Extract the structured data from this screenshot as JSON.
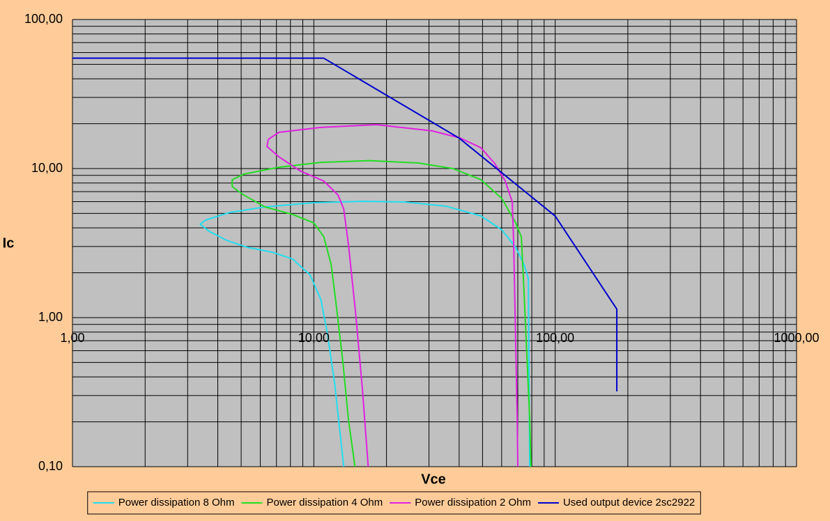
{
  "chart_data": {
    "type": "line",
    "x_label": "Vce",
    "y_label": "Ic",
    "log_x": true,
    "log_y": true,
    "grid": true,
    "minor_grid": true,
    "legend": "bottom",
    "xlim": [
      1,
      1000
    ],
    "ylim": [
      0.1,
      100
    ],
    "xticks": [
      {
        "value": 1,
        "label": "1,00"
      },
      {
        "value": 10,
        "label": "10,00"
      },
      {
        "value": 100,
        "label": "100,00"
      },
      {
        "value": 1000,
        "label": "1000,00"
      }
    ],
    "yticks": [
      {
        "value": 0.1,
        "label": "0,10"
      },
      {
        "value": 1,
        "label": "1,00"
      },
      {
        "value": 10,
        "label": "10,00"
      },
      {
        "value": 100,
        "label": "100,00"
      }
    ],
    "series": [
      {
        "name": "Power dissipation 8 Ohm",
        "color": "#22ddee",
        "x": [
          78.4,
          77.4,
          74.3,
          68.6,
          60.1,
          49.2,
          35.3,
          23.7,
          15.9,
          10.0,
          6.27,
          4.49,
          3.56,
          3.38,
          3.68,
          4.35,
          5.31,
          6.7,
          8.18,
          9.65,
          10.7,
          11.4,
          12.2,
          13.3
        ],
        "values": [
          0.1,
          1.83,
          2.27,
          2.96,
          3.88,
          4.81,
          5.59,
          5.97,
          6.03,
          5.9,
          5.53,
          5.08,
          4.51,
          4.23,
          3.8,
          3.3,
          2.96,
          2.75,
          2.47,
          1.93,
          1.32,
          0.77,
          0.36,
          0.1
        ]
      },
      {
        "name": "Power dissipation 4 Ohm",
        "color": "#22dd22",
        "x": [
          79.4,
          78.4,
          74.3,
          72.4,
          68.6,
          60.1,
          49.2,
          37.7,
          27.1,
          17.0,
          10.7,
          7.16,
          5.13,
          4.59,
          4.59,
          5.13,
          6.27,
          8.18,
          10.0,
          11.0,
          11.8,
          12.4,
          13.2,
          13.9,
          14.8
        ],
        "values": [
          0.1,
          0.21,
          1.47,
          3.48,
          4.32,
          6.3,
          8.42,
          10.0,
          10.9,
          11.3,
          11.0,
          10.2,
          9.18,
          8.42,
          7.56,
          6.64,
          5.53,
          4.92,
          4.32,
          3.48,
          2.27,
          1.19,
          0.5,
          0.21,
          0.1
        ]
      },
      {
        "name": "Power dissipation 2 Ohm",
        "color": "#e020e0",
        "x": [
          70.0,
          69.6,
          67.3,
          66.4,
          62.1,
          56.2,
          49.2,
          40.3,
          30.9,
          18.2,
          10.7,
          7.16,
          6.48,
          6.39,
          7.16,
          8.74,
          11.0,
          12.6,
          13.3,
          13.9,
          14.9,
          15.9,
          16.8
        ],
        "values": [
          0.1,
          0.21,
          3.13,
          5.97,
          8.24,
          10.8,
          13.8,
          16.05,
          17.9,
          19.7,
          18.9,
          17.5,
          15.7,
          14.1,
          12.0,
          9.68,
          8.24,
          6.64,
          5.36,
          3.13,
          1.07,
          0.33,
          0.1
        ]
      },
      {
        "name": "Used output device 2sc2922",
        "color": "#0000cc",
        "x": [
          1,
          11,
          40,
          100,
          180,
          180
        ],
        "values": [
          55,
          55,
          16,
          4.8,
          1.14,
          0.32
        ]
      }
    ]
  }
}
